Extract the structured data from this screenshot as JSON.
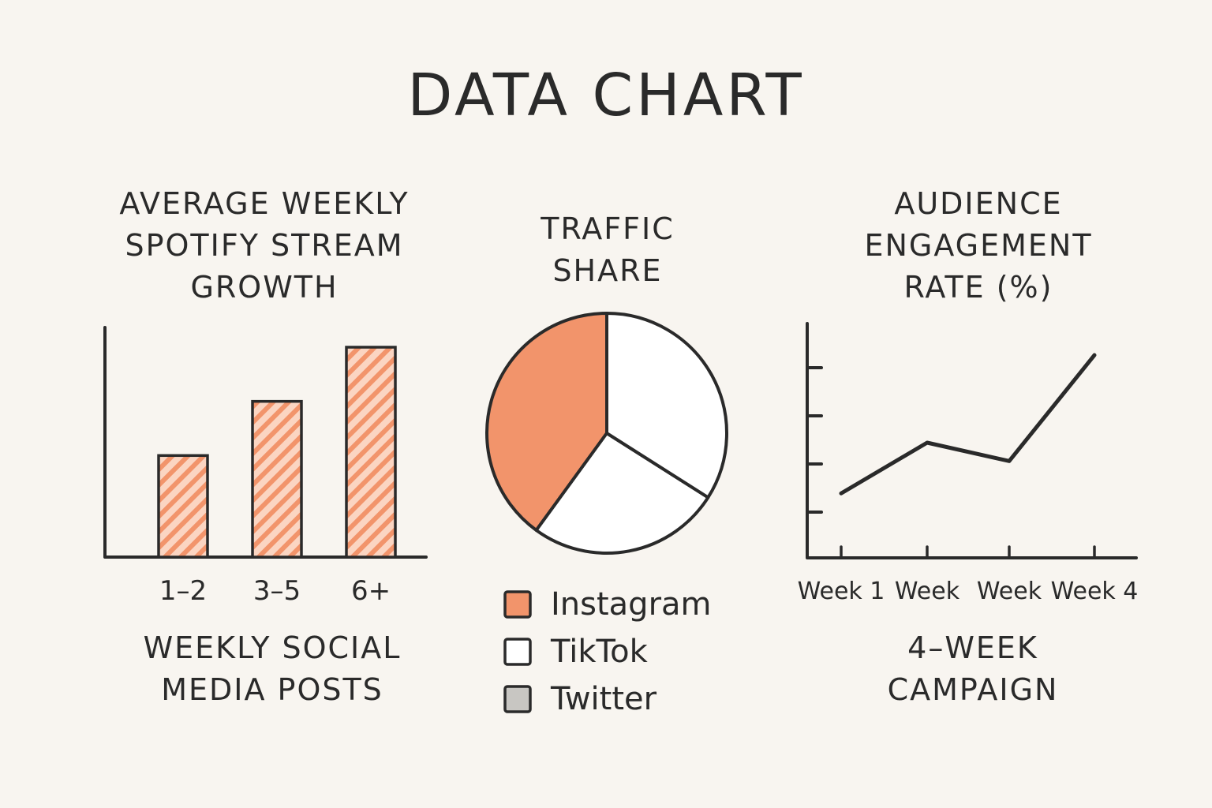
{
  "page": {
    "title": "DATA CHART"
  },
  "colors": {
    "background": "#f8f5f0",
    "accent": "#f2946b",
    "accent_light": "#fbd5c2",
    "ink": "#2a2a2a",
    "gray": "#c8c6c2",
    "white": "#ffffff"
  },
  "chart_data": [
    {
      "type": "bar",
      "title": "AVERAGE WEEKLY\nSPOTIFY STREAM\nGROWTH",
      "xlabel": "WEEKLY SOCIAL\nMEDIA POSTS",
      "ylabel": "",
      "categories": [
        "1–2",
        "3–5",
        "6+"
      ],
      "values": [
        0.45,
        0.69,
        0.93
      ],
      "ylim": [
        0,
        1
      ],
      "grid": false,
      "fill": "hatched-orange"
    },
    {
      "type": "pie",
      "title": "TRAFFIC\nSHARE",
      "labels": [
        "Instagram",
        "TikTok",
        "Twitter"
      ],
      "values": [
        40,
        26,
        34
      ],
      "colors": [
        "#f2946b",
        "#ffffff",
        "#ffffff"
      ],
      "legend_colors": [
        "#f2946b",
        "#ffffff",
        "#c8c6c2"
      ],
      "legend": "bottom"
    },
    {
      "type": "line",
      "title": "AUDIENCE\nENGAGEMENT\nRATE (%)",
      "xlabel": "4–WEEK\nCAMPAIGN",
      "ylabel": "",
      "tick_labels": [
        "Week 1",
        "Week",
        "Week",
        "Week 4"
      ],
      "x": [
        1,
        2,
        3,
        4
      ],
      "series": [
        {
          "values": [
            1.4,
            2.5,
            2.1,
            4.4
          ]
        }
      ],
      "ylim": [
        0,
        5
      ],
      "grid": false
    }
  ]
}
